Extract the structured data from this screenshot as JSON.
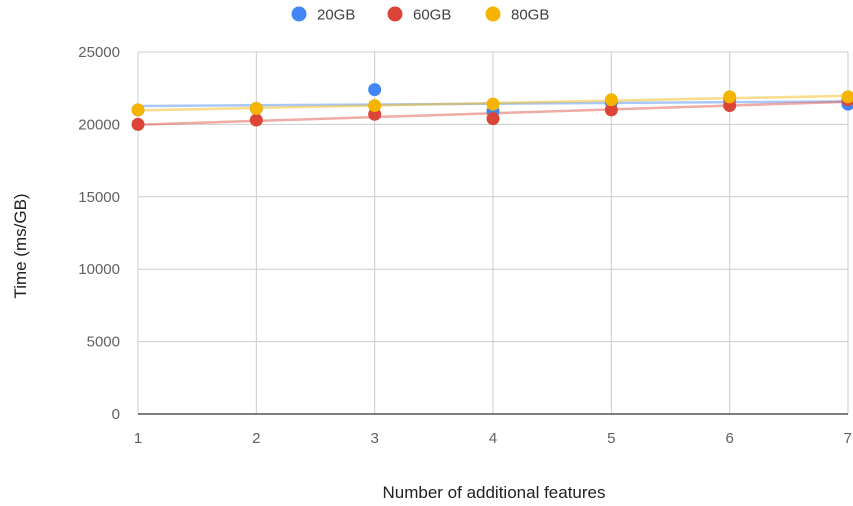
{
  "chart_data": {
    "type": "scatter",
    "title": "",
    "xlabel": "Number of additional features",
    "ylabel": "Time (ms/GB)",
    "xlim": [
      1,
      7
    ],
    "ylim": [
      0,
      25000
    ],
    "x_ticks": [
      "1",
      "2",
      "3",
      "4",
      "5",
      "6",
      "7"
    ],
    "y_ticks": [
      "0",
      "5000",
      "10000",
      "15000",
      "20000",
      "25000"
    ],
    "grid": true,
    "legend_position": "top",
    "trendlines": "linear",
    "series": [
      {
        "name": "20GB",
        "color": "#4285F4",
        "x": [
          1,
          2,
          3,
          4,
          5,
          6,
          7
        ],
        "y": [
          21000,
          21100,
          22400,
          20900,
          21500,
          21700,
          21400
        ]
      },
      {
        "name": "60GB",
        "color": "#DB4437",
        "x": [
          1,
          2,
          3,
          4,
          5,
          6,
          7
        ],
        "y": [
          20000,
          20300,
          20700,
          20400,
          21000,
          21300,
          21700
        ]
      },
      {
        "name": "80GB",
        "color": "#F4B400",
        "x": [
          1,
          2,
          3,
          4,
          5,
          6,
          7
        ],
        "y": [
          21000,
          21100,
          21300,
          21400,
          21700,
          21900,
          21900
        ]
      }
    ]
  }
}
